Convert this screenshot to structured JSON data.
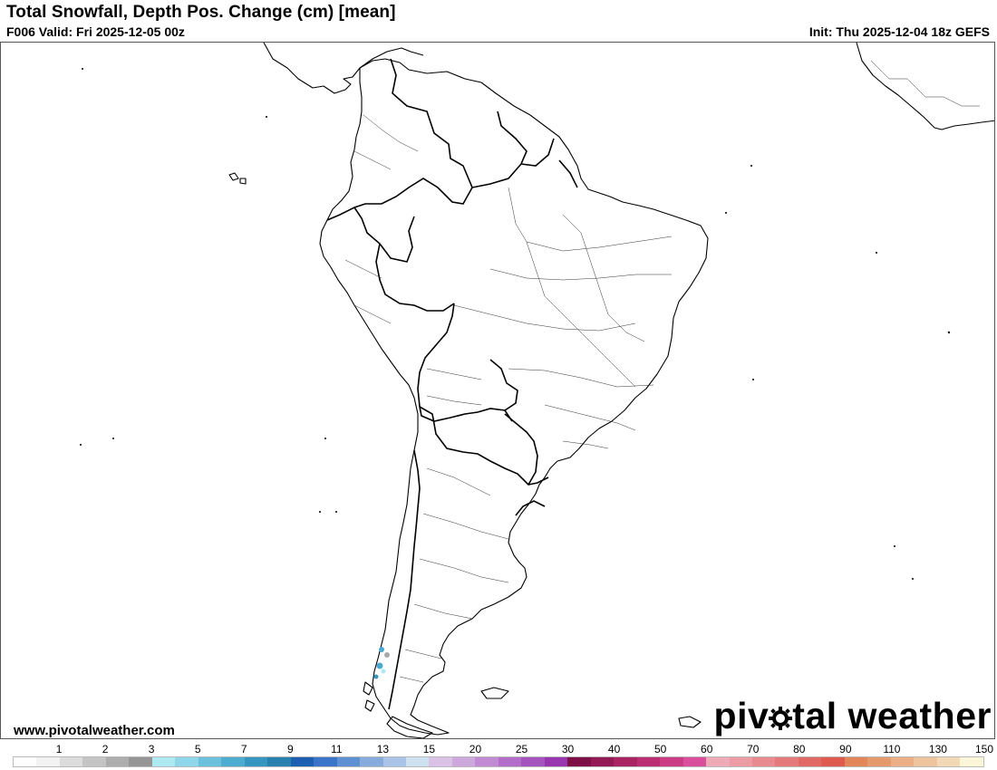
{
  "header": {
    "title": "Total Snowfall, Depth Pos. Change (cm) [mean]",
    "valid": "F006 Valid: Fri 2025-12-05 00z",
    "init": "Init: Thu 2025-12-04 18z GEFS"
  },
  "footer": {
    "credit": "www.pivotalweather.com",
    "logo_left": "piv",
    "logo_right": "tal weather",
    "logo_icon": "gear-o-icon"
  },
  "map": {
    "region": "South America",
    "snow_area_color": "#4aa9cc",
    "land_fill": "#ffffff",
    "border_color": "#000000"
  },
  "colorbar": {
    "ticks": [
      "1",
      "2",
      "3",
      "5",
      "7",
      "9",
      "11",
      "13",
      "15",
      "20",
      "25",
      "30",
      "40",
      "50",
      "60",
      "70",
      "80",
      "90",
      "110",
      "130",
      "150"
    ],
    "colors": [
      "#ffffff",
      "#f2f2f2",
      "#dcdcdc",
      "#c4c4c4",
      "#adadad",
      "#959595",
      "#aee9f1",
      "#8fd6e8",
      "#6bc1db",
      "#4eacd0",
      "#3796c0",
      "#2780ae",
      "#1d5fb0",
      "#3a75c9",
      "#5e90d4",
      "#87abdd",
      "#a9c4e6",
      "#cfe0ee",
      "#d9c2e6",
      "#cda8dd",
      "#c08bd3",
      "#b26ec8",
      "#a553bd",
      "#9836b0",
      "#7d0e46",
      "#931a55",
      "#a82463",
      "#bb2f72",
      "#cc3c84",
      "#d94f9b",
      "#eeaab6",
      "#eb9ca4",
      "#e88a90",
      "#e57a7c",
      "#e26a66",
      "#df5b50",
      "#e1875a",
      "#e59a6d",
      "#eaaf86",
      "#eec49e",
      "#f3d8b6",
      "#fcf6d8"
    ]
  }
}
